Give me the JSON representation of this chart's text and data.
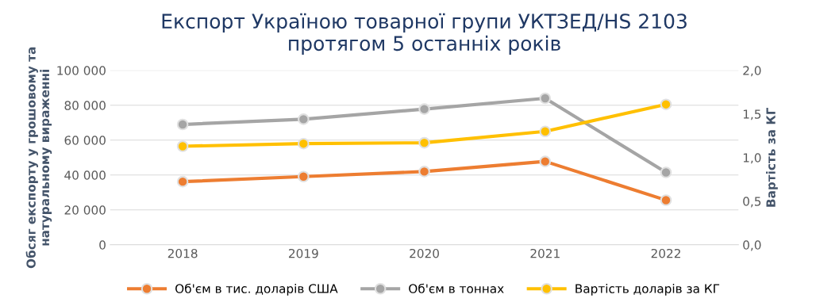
{
  "chart_data": {
    "type": "line",
    "title": "Експорт Україною товарної групи УКТЗЕД/HS 2103\nпротягом 5 останніх років",
    "ylabel": "Обсяг експорту у грошовому та\nнатуральному вираженні",
    "y2label": "Вартість за КГ",
    "categories": [
      "2018",
      "2019",
      "2020",
      "2021",
      "2022"
    ],
    "series": [
      {
        "name": "Об'єм в тис. доларів США",
        "color": "#ed7d31",
        "values": [
          36200,
          39100,
          42000,
          47800,
          25600
        ]
      },
      {
        "name": "Об'єм в тоннах",
        "color": "#a5a5a5",
        "values": [
          69000,
          72000,
          77800,
          84000,
          41500
        ]
      },
      {
        "name": "Вартість доларів за КГ",
        "color": "#ffc000",
        "axis": "y2",
        "values": [
          1.13,
          1.16,
          1.17,
          1.3,
          1.61
        ]
      }
    ],
    "ylim": [
      0,
      100000
    ],
    "yticks": [
      0,
      {
        "value": 20000,
        "label": "20 000"
      },
      {
        "value": 40000,
        "label": "40 000"
      },
      {
        "value": 60000,
        "label": "60 000"
      },
      {
        "value": 80000,
        "label": "80 000"
      },
      {
        "value": 100000,
        "label": "100 000"
      }
    ],
    "y2lim": [
      0,
      2
    ],
    "y2ticks": [
      {
        "value": 0,
        "label": "0,0"
      },
      {
        "value": 0.5,
        "label": "0,5"
      },
      {
        "value": 1,
        "label": "1,0"
      },
      {
        "value": 1.5,
        "label": "1,5"
      },
      {
        "value": 2,
        "label": "2,0"
      }
    ],
    "grid": "y",
    "legend": "bottom",
    "marker": "circle",
    "line_style": "solid"
  }
}
